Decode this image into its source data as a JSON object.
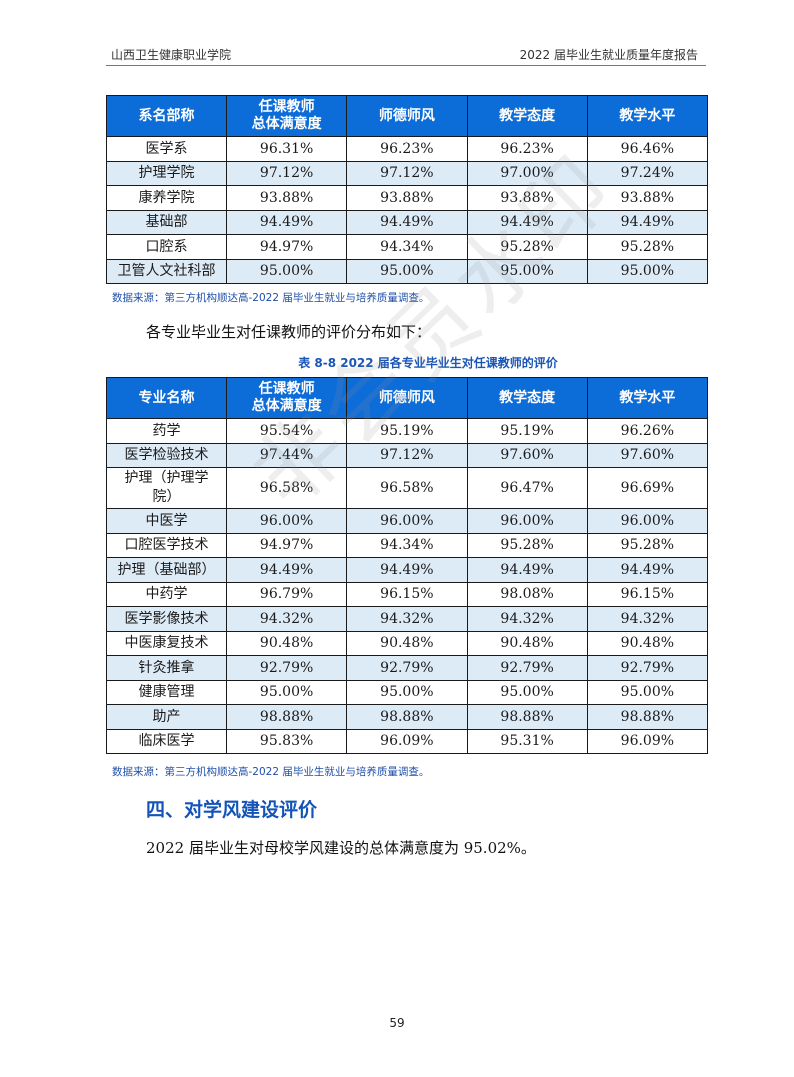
{
  "header": {
    "left": "山西卫生健康职业学院",
    "right": "2022 届毕业生就业质量年度报告"
  },
  "table1": {
    "columns": [
      "系名部称",
      "任课教师\n总体满意度",
      "师德师风",
      "教学态度",
      "教学水平"
    ],
    "rows": [
      [
        "医学系",
        "96.31%",
        "96.23%",
        "96.23%",
        "96.46%"
      ],
      [
        "护理学院",
        "97.12%",
        "97.12%",
        "97.00%",
        "97.24%"
      ],
      [
        "康养学院",
        "93.88%",
        "93.88%",
        "93.88%",
        "93.88%"
      ],
      [
        "基础部",
        "94.49%",
        "94.49%",
        "94.49%",
        "94.49%"
      ],
      [
        "口腔系",
        "94.97%",
        "94.34%",
        "95.28%",
        "95.28%"
      ],
      [
        "卫管人文社科部",
        "95.00%",
        "95.00%",
        "95.00%",
        "95.00%"
      ]
    ],
    "source": "数据来源：第三方机构顺达高-2022 届毕业生就业与培养质量调查。"
  },
  "intro_text": "各专业毕业生对任课教师的评价分布如下：",
  "table2": {
    "caption": "表  8-8   2022 届各专业毕业生对任课教师的评价",
    "columns": [
      "专业名称",
      "任课教师\n总体满意度",
      "师德师风",
      "教学态度",
      "教学水平"
    ],
    "rows": [
      [
        "药学",
        "95.54%",
        "95.19%",
        "95.19%",
        "96.26%"
      ],
      [
        "医学检验技术",
        "97.44%",
        "97.12%",
        "97.60%",
        "97.60%"
      ],
      [
        "护理（护理学\n院）",
        "96.58%",
        "96.58%",
        "96.47%",
        "96.69%"
      ],
      [
        "中医学",
        "96.00%",
        "96.00%",
        "96.00%",
        "96.00%"
      ],
      [
        "口腔医学技术",
        "94.97%",
        "94.34%",
        "95.28%",
        "95.28%"
      ],
      [
        "护理（基础部）",
        "94.49%",
        "94.49%",
        "94.49%",
        "94.49%"
      ],
      [
        "中药学",
        "96.79%",
        "96.15%",
        "98.08%",
        "96.15%"
      ],
      [
        "医学影像技术",
        "94.32%",
        "94.32%",
        "94.32%",
        "94.32%"
      ],
      [
        "中医康复技术",
        "90.48%",
        "90.48%",
        "90.48%",
        "90.48%"
      ],
      [
        "针灸推拿",
        "92.79%",
        "92.79%",
        "92.79%",
        "92.79%"
      ],
      [
        "健康管理",
        "95.00%",
        "95.00%",
        "95.00%",
        "95.00%"
      ],
      [
        "助产",
        "98.88%",
        "98.88%",
        "98.88%",
        "98.88%"
      ],
      [
        "临床医学",
        "95.83%",
        "96.09%",
        "95.31%",
        "96.09%"
      ]
    ],
    "source": "数据来源：第三方机构顺达高-2022 届毕业生就业与培养质量调查。"
  },
  "section_title": "四、对学风建设评价",
  "section_text": "2022 届毕业生对母校学风建设的总体满意度为 95.02%。",
  "watermark": "非会员水印",
  "page_number": "59",
  "colors": {
    "header_blue": "#0c6cd8",
    "row_alt": "#ddebf7",
    "accent_text": "#1454b8"
  }
}
